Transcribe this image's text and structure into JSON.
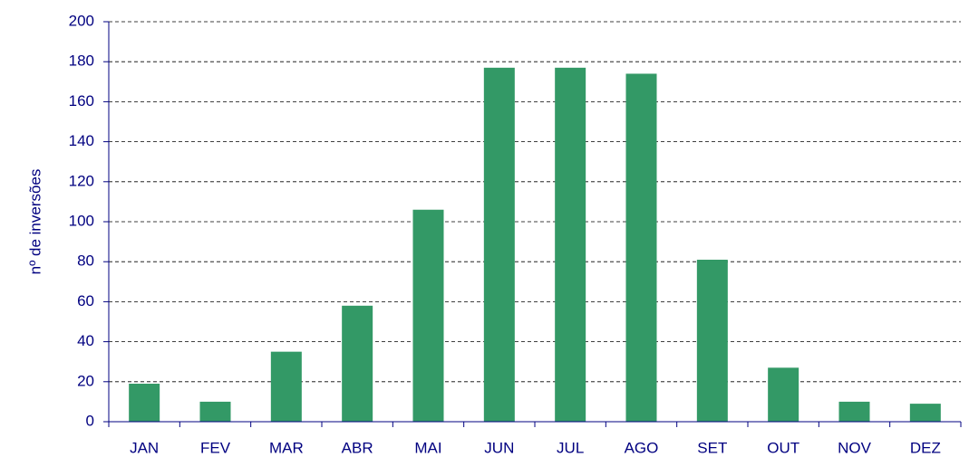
{
  "chart_data": {
    "type": "bar",
    "y_label": "nº de inversões",
    "categories": [
      "JAN",
      "FEV",
      "MAR",
      "ABR",
      "MAI",
      "JUN",
      "JUL",
      "AGO",
      "SET",
      "OUT",
      "NOV",
      "DEZ"
    ],
    "values": [
      19,
      10,
      35,
      58,
      106,
      177,
      177,
      174,
      81,
      27,
      10,
      9
    ],
    "color": "#339966",
    "ylim": [
      0,
      200
    ],
    "yticks": [
      0,
      20,
      40,
      60,
      80,
      100,
      120,
      140,
      160,
      180,
      200
    ],
    "grid": true
  }
}
